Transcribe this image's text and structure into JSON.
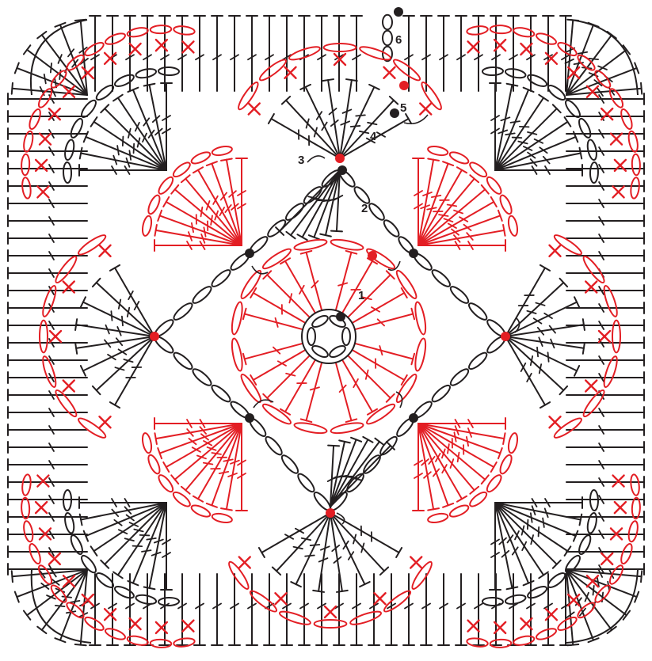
{
  "diagram": {
    "colors": {
      "black": "#231f20",
      "red": "#e31e24",
      "background": "#ffffff"
    },
    "symbols": {
      "chain": "oval-chain-icon",
      "treble": "treble-stitch-icon",
      "single": "single-crochet-x-icon",
      "slip_start": "start-dot-icon",
      "direction": "turn-arrow-icon"
    },
    "round_labels": [
      "1",
      "2",
      "3",
      "4",
      "5",
      "6"
    ]
  }
}
